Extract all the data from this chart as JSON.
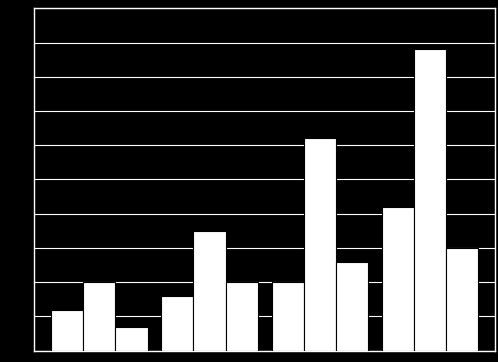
{
  "groups": 4,
  "bars_per_group": 3,
  "values": [
    [
      12,
      20,
      7
    ],
    [
      16,
      35,
      20
    ],
    [
      20,
      62,
      26
    ],
    [
      42,
      88,
      30
    ]
  ],
  "bar_color": "#ffffff",
  "background_color": "#000000",
  "grid_color": "#ffffff",
  "bar_width": 0.28,
  "ylim": [
    0,
    100
  ],
  "yticks": [
    0,
    10,
    20,
    30,
    40,
    50,
    60,
    70,
    80,
    90,
    100
  ]
}
